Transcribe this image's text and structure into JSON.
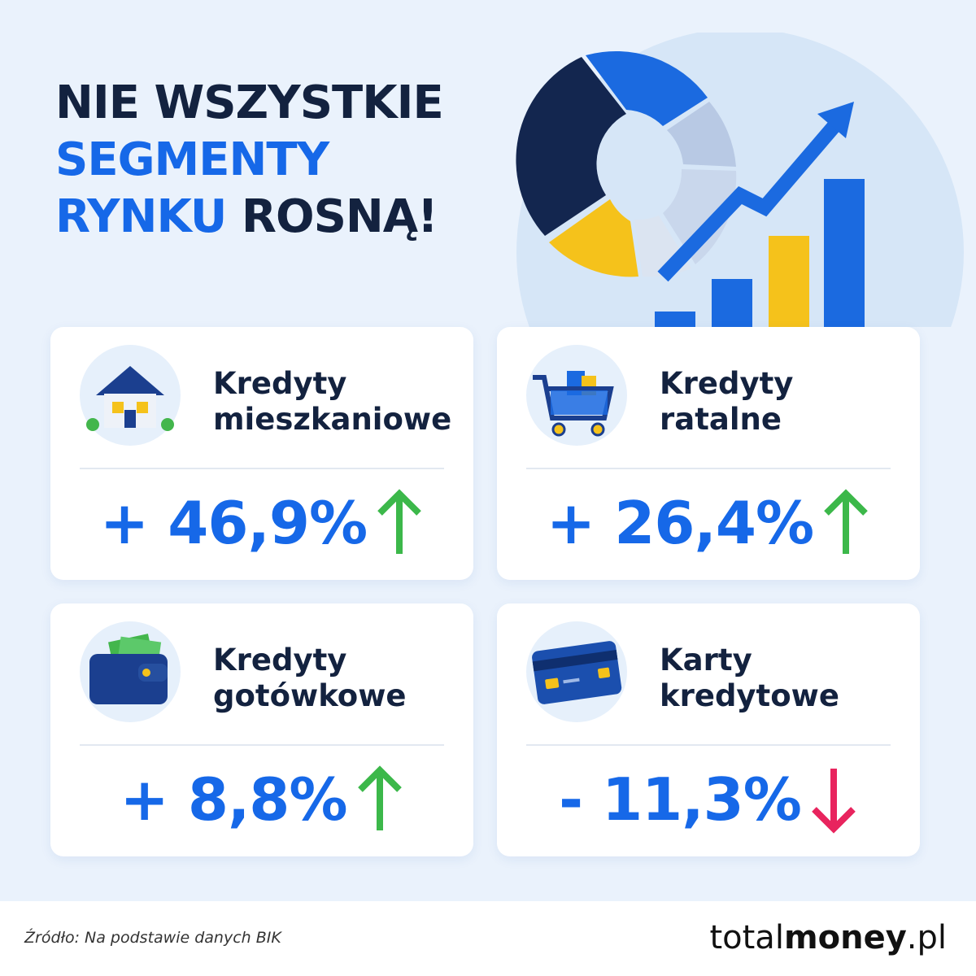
{
  "title": {
    "lines": [
      [
        "NIE WSZYSTKIE"
      ],
      [
        "SEGMENTY"
      ],
      [
        "RYNKU",
        "ROSNĄ!"
      ]
    ]
  },
  "cards": [
    {
      "label": "Kredyty mieszkaniowe",
      "value": "+ 46,9%",
      "trend": "up"
    },
    {
      "label": "Kredyty ratalne",
      "value": "+ 26,4%",
      "trend": "up"
    },
    {
      "label": "Kredyty gotówkowe",
      "value": "+ 8,8%",
      "trend": "up"
    },
    {
      "label": "Karty kredytowe",
      "value": "- 11,3%",
      "trend": "down"
    }
  ],
  "footer": {
    "source": "Źródło: Na podstawie danych BIK",
    "logo": [
      "total",
      "money",
      ".pl"
    ]
  }
}
